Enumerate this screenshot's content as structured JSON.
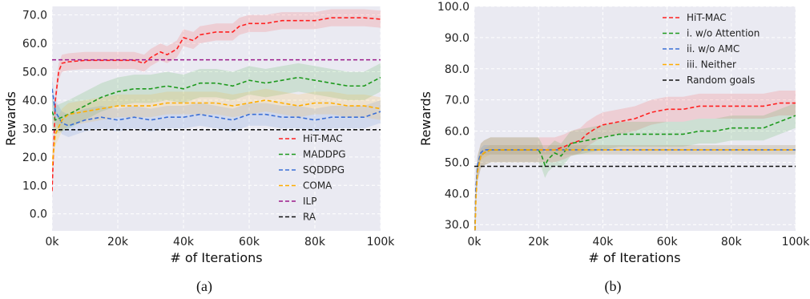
{
  "chart_data": [
    {
      "type": "line",
      "caption": "(a)",
      "xlabel": "# of Iterations",
      "ylabel": "Rewards",
      "xlim": [
        0,
        100
      ],
      "ylim": [
        -6,
        73
      ],
      "xticks": [
        0,
        20,
        40,
        60,
        80,
        100
      ],
      "xtick_labels": [
        "0k",
        "20k",
        "40k",
        "60k",
        "80k",
        "100k"
      ],
      "yticks": [
        0,
        10,
        20,
        30,
        40,
        50,
        60,
        70
      ],
      "ytick_labels": [
        "0.0",
        "10.0",
        "20.0",
        "30.0",
        "40.0",
        "50.0",
        "60.0",
        "70.0"
      ],
      "grid": true,
      "legend_position": "bottom-right",
      "series": [
        {
          "name": "HiT-MAC",
          "color": "#ff2020",
          "band": 3,
          "x": [
            0,
            1,
            2,
            3,
            5,
            10,
            15,
            20,
            25,
            28,
            30,
            33,
            35,
            38,
            40,
            43,
            45,
            50,
            55,
            57,
            60,
            65,
            70,
            75,
            80,
            85,
            90,
            95,
            100
          ],
          "y": [
            8,
            40,
            50,
            53,
            53.5,
            54,
            54,
            54,
            54,
            53,
            55,
            57,
            56,
            58,
            62,
            61,
            63,
            64,
            64,
            66,
            67,
            67,
            68,
            68,
            68,
            69,
            69,
            69,
            68.5
          ]
        },
        {
          "name": "MADDPG",
          "color": "#1e9a1e",
          "band": 5,
          "x": [
            0,
            1,
            3,
            5,
            10,
            15,
            20,
            25,
            30,
            35,
            40,
            45,
            50,
            55,
            60,
            65,
            70,
            75,
            80,
            85,
            90,
            95,
            100
          ],
          "y": [
            36,
            33,
            34,
            35,
            38,
            41,
            43,
            44,
            44,
            45,
            44,
            46,
            46,
            45,
            47,
            46,
            47,
            48,
            47,
            46,
            45,
            45,
            48
          ]
        },
        {
          "name": "SQDDPG",
          "color": "#3b6fd6",
          "band": 4,
          "x": [
            0,
            1,
            3,
            5,
            10,
            15,
            20,
            25,
            30,
            35,
            40,
            45,
            50,
            55,
            60,
            65,
            70,
            75,
            80,
            85,
            90,
            95,
            100
          ],
          "y": [
            44,
            36,
            32,
            31,
            33,
            34,
            33,
            34,
            33,
            34,
            34,
            35,
            34,
            33,
            35,
            35,
            34,
            34,
            33,
            34,
            34,
            34,
            36
          ]
        },
        {
          "name": "COMA",
          "color": "#ffad00",
          "band": 4,
          "x": [
            0,
            1,
            3,
            5,
            10,
            15,
            20,
            25,
            30,
            35,
            40,
            45,
            50,
            55,
            60,
            65,
            70,
            75,
            80,
            85,
            90,
            95,
            100
          ],
          "y": [
            17,
            28,
            33,
            35,
            36,
            37,
            38,
            38,
            38,
            39,
            39,
            39,
            39,
            38,
            39,
            40,
            39,
            38,
            39,
            39,
            38,
            38,
            37
          ]
        },
        {
          "name": "ILP",
          "color": "#9b1a8a",
          "band": 0,
          "x": [
            0,
            100
          ],
          "y": [
            54.2,
            54.2
          ]
        },
        {
          "name": "RA",
          "color": "#111111",
          "band": 0,
          "x": [
            0,
            100
          ],
          "y": [
            29.6,
            29.6
          ]
        }
      ]
    },
    {
      "type": "line",
      "caption": "(b)",
      "xlabel": "# of Iterations",
      "ylabel": "Rewards",
      "xlim": [
        0,
        100
      ],
      "ylim": [
        28,
        100
      ],
      "xticks": [
        0,
        20,
        40,
        60,
        80,
        100
      ],
      "xtick_labels": [
        "0k",
        "20k",
        "40k",
        "60k",
        "80k",
        "100k"
      ],
      "yticks": [
        30,
        40,
        50,
        60,
        70,
        80,
        90,
        100
      ],
      "ytick_labels": [
        "30.0",
        "40.0",
        "50.0",
        "60.0",
        "70.0",
        "80.0",
        "90.0",
        "100.0"
      ],
      "grid": true,
      "legend_position": "top-right",
      "series": [
        {
          "name": "HiT-MAC",
          "color": "#ff2020",
          "band": 4,
          "x": [
            0,
            0.5,
            1,
            2,
            3,
            5,
            10,
            15,
            20,
            25,
            28,
            30,
            33,
            35,
            38,
            40,
            45,
            50,
            55,
            60,
            65,
            70,
            75,
            80,
            85,
            90,
            95,
            100
          ],
          "y": [
            20,
            40,
            48,
            52,
            53,
            54,
            54,
            54,
            54,
            54,
            55,
            56,
            57,
            59,
            61,
            62,
            63,
            64,
            66,
            67,
            67,
            68,
            68,
            68,
            68,
            68,
            69,
            69
          ]
        },
        {
          "name": "i. w/o Attention",
          "color": "#1e9a1e",
          "band": 4,
          "x": [
            0,
            0.5,
            1,
            2,
            3,
            5,
            10,
            15,
            20,
            21,
            22,
            23,
            25,
            27,
            30,
            35,
            40,
            45,
            50,
            55,
            60,
            65,
            70,
            75,
            80,
            85,
            90,
            95,
            100
          ],
          "y": [
            20,
            40,
            48,
            52,
            53,
            54,
            54,
            54,
            54,
            52,
            49,
            51,
            53,
            52,
            56,
            57,
            58,
            59,
            59,
            59,
            59,
            59,
            60,
            60,
            61,
            61,
            61,
            63,
            65
          ]
        },
        {
          "name": "ii. w/o AMC",
          "color": "#3b6fd6",
          "band": 1.5,
          "x": [
            0,
            0.5,
            1,
            2,
            3,
            5,
            10,
            20,
            30,
            40,
            50,
            60,
            70,
            80,
            90,
            100
          ],
          "y": [
            20,
            42,
            49,
            53,
            54,
            54,
            54,
            54,
            54,
            54,
            54,
            54,
            54,
            54,
            54,
            54
          ]
        },
        {
          "name": "iii. Neither",
          "color": "#ffad00",
          "band": 1.5,
          "x": [
            0,
            0.5,
            1,
            2,
            3,
            5,
            10,
            20,
            30,
            40,
            50,
            60,
            70,
            80,
            90,
            100
          ],
          "y": [
            20,
            38,
            47,
            52,
            53,
            54,
            54,
            54,
            54,
            54,
            54,
            54,
            54,
            54,
            54,
            54
          ]
        },
        {
          "name": "Random goals",
          "color": "#111111",
          "band": 0,
          "x": [
            0,
            100
          ],
          "y": [
            48.7,
            48.7
          ]
        }
      ]
    }
  ]
}
